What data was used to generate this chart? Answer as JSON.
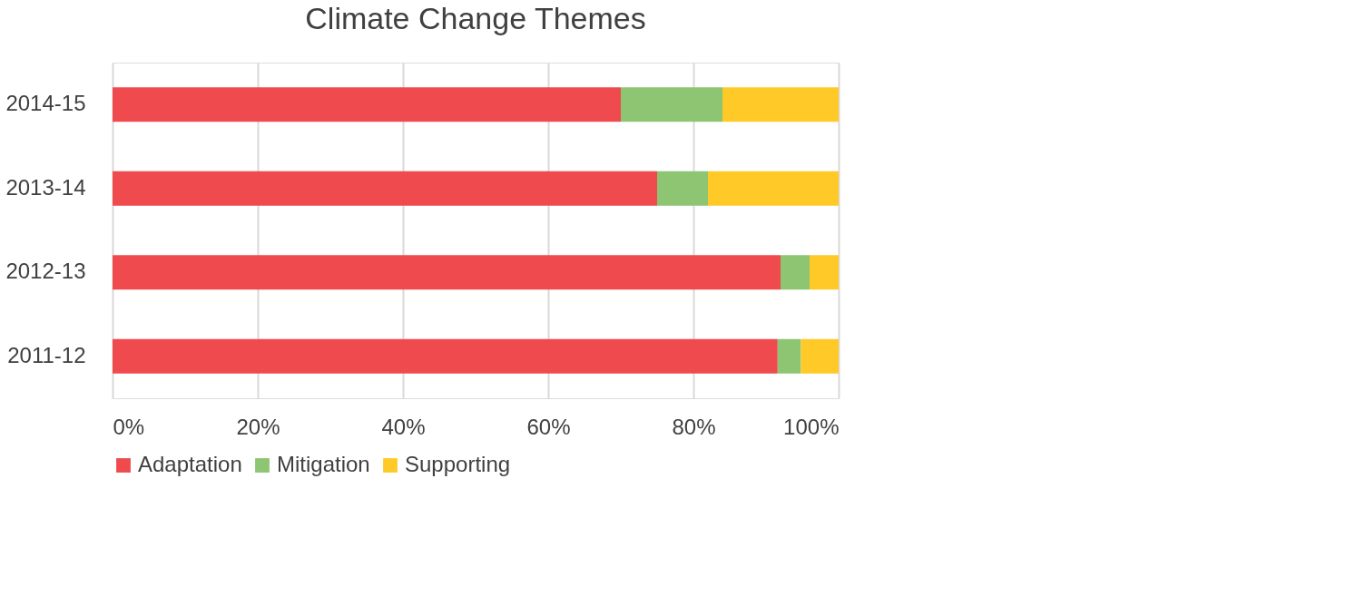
{
  "chart_data": {
    "type": "bar",
    "title": "Climate Change Themes",
    "orientation": "horizontal",
    "stacked": true,
    "categories": [
      "2014-15",
      "2013-14",
      "2012-13",
      "2011-12"
    ],
    "series": [
      {
        "name": "Adaptation",
        "color": "#ef4a4d",
        "values": [
          70,
          75,
          92,
          91.6
        ]
      },
      {
        "name": "Mitigation",
        "color": "#8dc572",
        "values": [
          14,
          7,
          4,
          3.2
        ]
      },
      {
        "name": "Supporting",
        "color": "#ffc928",
        "values": [
          16,
          18,
          4,
          5.2
        ]
      }
    ],
    "xlim": [
      0,
      100
    ],
    "xticks": [
      {
        "value": 0,
        "label": "0%"
      },
      {
        "value": 20,
        "label": "20%"
      },
      {
        "value": 40,
        "label": "40%"
      },
      {
        "value": 60,
        "label": "60%"
      },
      {
        "value": 80,
        "label": "80%"
      },
      {
        "value": 100,
        "label": "100%"
      }
    ],
    "grid": "x",
    "legend": "bottom"
  }
}
